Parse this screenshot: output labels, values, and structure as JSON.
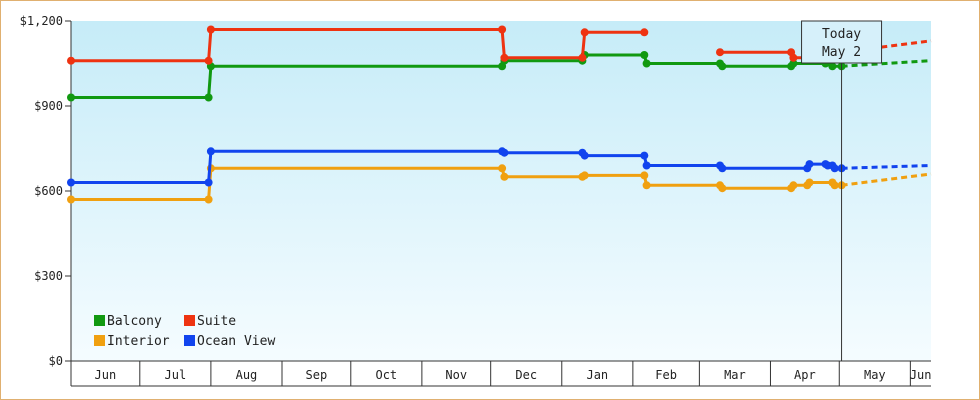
{
  "chart_data": {
    "type": "line",
    "title": "",
    "xlabel": "",
    "ylabel": "",
    "y_ticks": [
      "$0",
      "$300",
      "$600",
      "$900",
      "$1,200"
    ],
    "ylim": [
      0,
      1200
    ],
    "x_months": [
      "Jun",
      "Jul",
      "Aug",
      "Sep",
      "Oct",
      "Nov",
      "Dec",
      "Jan",
      "Feb",
      "Mar",
      "Apr",
      "May",
      "Jun"
    ],
    "grid": false,
    "legend_position": "bottom-left",
    "today_marker": {
      "line1": "Today",
      "line2": "May 2",
      "date": "2024-05-02"
    },
    "series": [
      {
        "name": "Balcony",
        "color": "#119911",
        "values": [
          [
            "2023-06-01",
            930
          ],
          [
            "2023-07-31",
            930
          ],
          [
            "2023-08-01",
            1040
          ],
          [
            "2023-12-06",
            1040
          ],
          [
            "2023-12-07",
            1060
          ],
          [
            "2024-01-10",
            1060
          ],
          [
            "2024-01-11",
            1080
          ],
          [
            "2024-02-06",
            1080
          ],
          [
            "2024-02-07",
            1050
          ],
          [
            "2024-03-10",
            1050
          ],
          [
            "2024-03-11",
            1040
          ],
          [
            "2024-04-10",
            1040
          ],
          [
            "2024-04-11",
            1050
          ],
          [
            "2024-04-25",
            1050
          ],
          [
            "2024-04-28",
            1040
          ],
          [
            "2024-05-02",
            1040
          ]
        ],
        "forecast": [
          [
            "2024-05-02",
            1040
          ],
          [
            "2024-06-10",
            1060
          ]
        ]
      },
      {
        "name": "Suite",
        "color": "#ee3311",
        "values": [
          [
            "2023-06-01",
            1060
          ],
          [
            "2023-07-31",
            1060
          ],
          [
            "2023-08-01",
            1170
          ],
          [
            "2023-12-06",
            1170
          ],
          [
            "2023-12-07",
            1070
          ],
          [
            "2024-01-10",
            1070
          ],
          [
            "2024-01-11",
            1160
          ],
          [
            "2024-02-06",
            1160
          ],
          null,
          [
            "2024-03-10",
            1090
          ],
          [
            "2024-04-10",
            1090
          ],
          [
            "2024-04-11",
            1070
          ],
          [
            "2024-04-17",
            1070
          ],
          [
            "2024-04-18",
            1090
          ],
          [
            "2024-04-25",
            1090
          ],
          [
            "2024-04-26",
            1120
          ],
          [
            "2024-04-28",
            1120
          ],
          [
            "2024-04-29",
            1090
          ],
          [
            "2024-05-02",
            1090
          ]
        ],
        "forecast": [
          [
            "2024-05-02",
            1090
          ],
          [
            "2024-06-10",
            1130
          ]
        ]
      },
      {
        "name": "Interior",
        "color": "#f0a010",
        "values": [
          [
            "2023-06-01",
            570
          ],
          [
            "2023-07-31",
            570
          ],
          [
            "2023-08-01",
            680
          ],
          [
            "2023-12-06",
            680
          ],
          [
            "2023-12-07",
            650
          ],
          [
            "2024-01-10",
            650
          ],
          [
            "2024-01-11",
            655
          ],
          [
            "2024-02-06",
            655
          ],
          [
            "2024-02-07",
            620
          ],
          [
            "2024-03-10",
            620
          ],
          [
            "2024-03-11",
            610
          ],
          [
            "2024-04-10",
            610
          ],
          [
            "2024-04-11",
            620
          ],
          [
            "2024-04-17",
            620
          ],
          [
            "2024-04-18",
            630
          ],
          [
            "2024-04-28",
            630
          ],
          [
            "2024-04-29",
            620
          ],
          [
            "2024-05-02",
            620
          ]
        ],
        "forecast": [
          [
            "2024-05-02",
            620
          ],
          [
            "2024-06-10",
            660
          ]
        ]
      },
      {
        "name": "Ocean View",
        "color": "#1144ee",
        "values": [
          [
            "2023-06-01",
            630
          ],
          [
            "2023-07-31",
            630
          ],
          [
            "2023-08-01",
            740
          ],
          [
            "2023-12-06",
            740
          ],
          [
            "2023-12-07",
            735
          ],
          [
            "2024-01-10",
            735
          ],
          [
            "2024-01-11",
            725
          ],
          [
            "2024-02-06",
            725
          ],
          [
            "2024-02-07",
            690
          ],
          [
            "2024-03-10",
            690
          ],
          [
            "2024-03-11",
            680
          ],
          [
            "2024-04-17",
            680
          ],
          [
            "2024-04-18",
            695
          ],
          [
            "2024-04-25",
            695
          ],
          [
            "2024-04-26",
            690
          ],
          [
            "2024-04-28",
            690
          ],
          [
            "2024-04-29",
            680
          ],
          [
            "2024-05-02",
            680
          ]
        ],
        "forecast": [
          [
            "2024-05-02",
            680
          ],
          [
            "2024-06-10",
            690
          ]
        ]
      }
    ]
  }
}
